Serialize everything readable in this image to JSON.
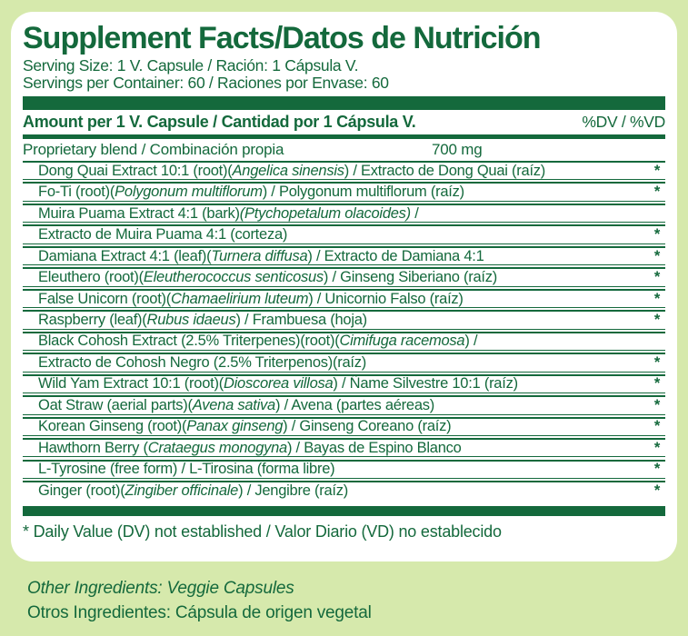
{
  "colors": {
    "green": "#14693c",
    "bg": "#d6e9ac",
    "panel": "#ffffff"
  },
  "title": "Supplement Facts/Datos de Nutrición",
  "serving": {
    "size_line": "Serving Size: 1 V. Capsule / Ración: 1 Cápsula V.",
    "container_line": "Servings per Container: 60 / Raciones por Envase: 60"
  },
  "header": {
    "amount_label": "Amount per 1 V. Capsule / Cantidad por 1 Cápsula V.",
    "dv_label": "%DV / %VD"
  },
  "blend": {
    "name": "Proprietary blend / Combinación propia",
    "amount": "700 mg"
  },
  "ingredients": [
    {
      "segments": [
        {
          "t": "Dong Quai Extract 10:1 (root)("
        },
        {
          "t": "Angelica sinensis",
          "i": true
        },
        {
          "t": ") / Extracto de Dong Quai (raíz)"
        }
      ],
      "dv": "*"
    },
    {
      "segments": [
        {
          "t": "Fo-Ti (root)("
        },
        {
          "t": "Polygonum multiflorum",
          "i": true
        },
        {
          "t": ") / Polygonum multiflorum (raíz)"
        }
      ],
      "dv": "*"
    },
    {
      "segments": [
        {
          "t": "Muira Puama Extract 4:1 (bark)"
        },
        {
          "t": "(Ptychopetalum olacoides)",
          "i": true
        },
        {
          "t": " /"
        }
      ],
      "dv": ""
    },
    {
      "segments": [
        {
          "t": "Extracto de Muira Puama 4:1 (corteza)"
        }
      ],
      "dv": "*"
    },
    {
      "segments": [
        {
          "t": "Damiana Extract 4:1 (leaf)("
        },
        {
          "t": "Turnera diffusa",
          "i": true
        },
        {
          "t": ") / Extracto de Damiana 4:1"
        }
      ],
      "dv": "*"
    },
    {
      "segments": [
        {
          "t": "Eleuthero (root)("
        },
        {
          "t": "Eleutherococcus senticosus",
          "i": true
        },
        {
          "t": ") / Ginseng Siberiano (raíz)"
        }
      ],
      "dv": "*"
    },
    {
      "segments": [
        {
          "t": "False Unicorn (root)("
        },
        {
          "t": "Chamaelirium luteum",
          "i": true
        },
        {
          "t": ") / Unicornio Falso (raíz)"
        }
      ],
      "dv": "*"
    },
    {
      "segments": [
        {
          "t": "Raspberry (leaf)("
        },
        {
          "t": "Rubus idaeus",
          "i": true
        },
        {
          "t": ") / Frambuesa (hoja)"
        }
      ],
      "dv": "*"
    },
    {
      "segments": [
        {
          "t": "Black Cohosh Extract (2.5% Triterpenes)(root)("
        },
        {
          "t": "Cimifuga racemosa",
          "i": true
        },
        {
          "t": ") /"
        }
      ],
      "dv": ""
    },
    {
      "segments": [
        {
          "t": "Extracto de Cohosh Negro (2.5% Triterpenos)(raíz)"
        }
      ],
      "dv": "*"
    },
    {
      "segments": [
        {
          "t": "Wild Yam Extract 10:1 (root)("
        },
        {
          "t": "Dioscorea villosa",
          "i": true
        },
        {
          "t": ") / Ñame Silvestre 10:1 (raíz)"
        }
      ],
      "dv": "*"
    },
    {
      "segments": [
        {
          "t": "Oat Straw (aerial parts)("
        },
        {
          "t": "Avena sativa",
          "i": true
        },
        {
          "t": ") / Avena (partes aéreas)"
        }
      ],
      "dv": "*"
    },
    {
      "segments": [
        {
          "t": "Korean Ginseng (root)("
        },
        {
          "t": "Panax ginseng",
          "i": true
        },
        {
          "t": ") / Ginseng Coreano (raíz)"
        }
      ],
      "dv": "*"
    },
    {
      "segments": [
        {
          "t": "Hawthorn Berry ("
        },
        {
          "t": "Crataegus monogyna",
          "i": true
        },
        {
          "t": ") / Bayas de Espino Blanco"
        }
      ],
      "dv": "*"
    },
    {
      "segments": [
        {
          "t": "L-Tyrosine (free form) / L-Tirosina (forma libre)"
        }
      ],
      "dv": "*"
    },
    {
      "segments": [
        {
          "t": "Ginger (root)("
        },
        {
          "t": "Zingiber officinale",
          "i": true
        },
        {
          "t": ") / Jengibre (raíz)"
        }
      ],
      "dv": "*"
    }
  ],
  "footnote": "* Daily Value (DV) not established / Valor Diario (VD) no establecido",
  "other_ingredients": {
    "english": "Other Ingredients: Veggie Capsules",
    "spanish": "Otros Ingredientes: Cápsula de origen vegetal"
  }
}
